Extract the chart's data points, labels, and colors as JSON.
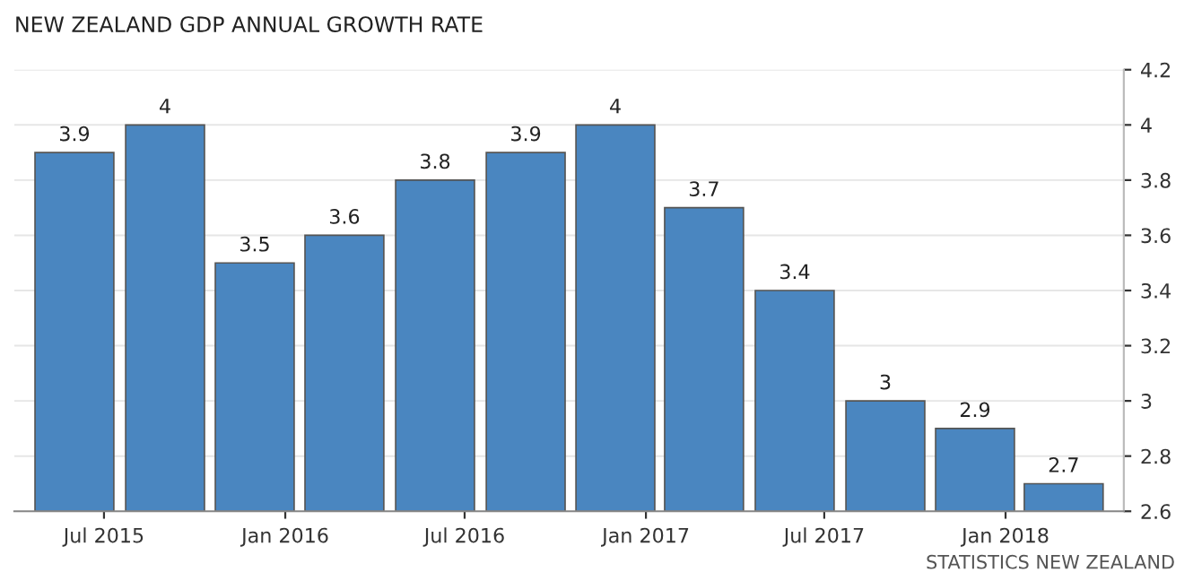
{
  "chart_data": {
    "type": "bar",
    "title": "NEW ZEALAND GDP ANNUAL GROWTH RATE",
    "x": [
      "2015-06",
      "2015-09",
      "2015-12",
      "2016-03",
      "2016-06",
      "2016-09",
      "2016-12",
      "2017-03",
      "2017-06",
      "2017-09",
      "2017-12",
      "2018-03"
    ],
    "values": [
      3.9,
      4,
      3.5,
      3.6,
      3.8,
      3.9,
      4,
      3.7,
      3.4,
      3,
      2.9,
      2.7
    ],
    "color": "#4a86c0",
    "data_labels": true,
    "xlim": [
      "2015-04",
      "2018-05"
    ],
    "xticks": [
      {
        "value": "2015-07",
        "label": "Jul 2015"
      },
      {
        "value": "2016-01",
        "label": "Jan 2016"
      },
      {
        "value": "2016-07",
        "label": "Jul 2016"
      },
      {
        "value": "2017-01",
        "label": "Jan 2017"
      },
      {
        "value": "2017-07",
        "label": "Jul 2017"
      },
      {
        "value": "2018-01",
        "label": "Jan 2018"
      }
    ],
    "ylim": [
      2.6,
      4.2
    ],
    "yticks": [
      2.6,
      2.8,
      3,
      3.2,
      3.4,
      3.6,
      3.8,
      4,
      4.2
    ],
    "grid": "y",
    "annotations": [
      "STATISTICS NEW ZEALAND"
    ]
  }
}
